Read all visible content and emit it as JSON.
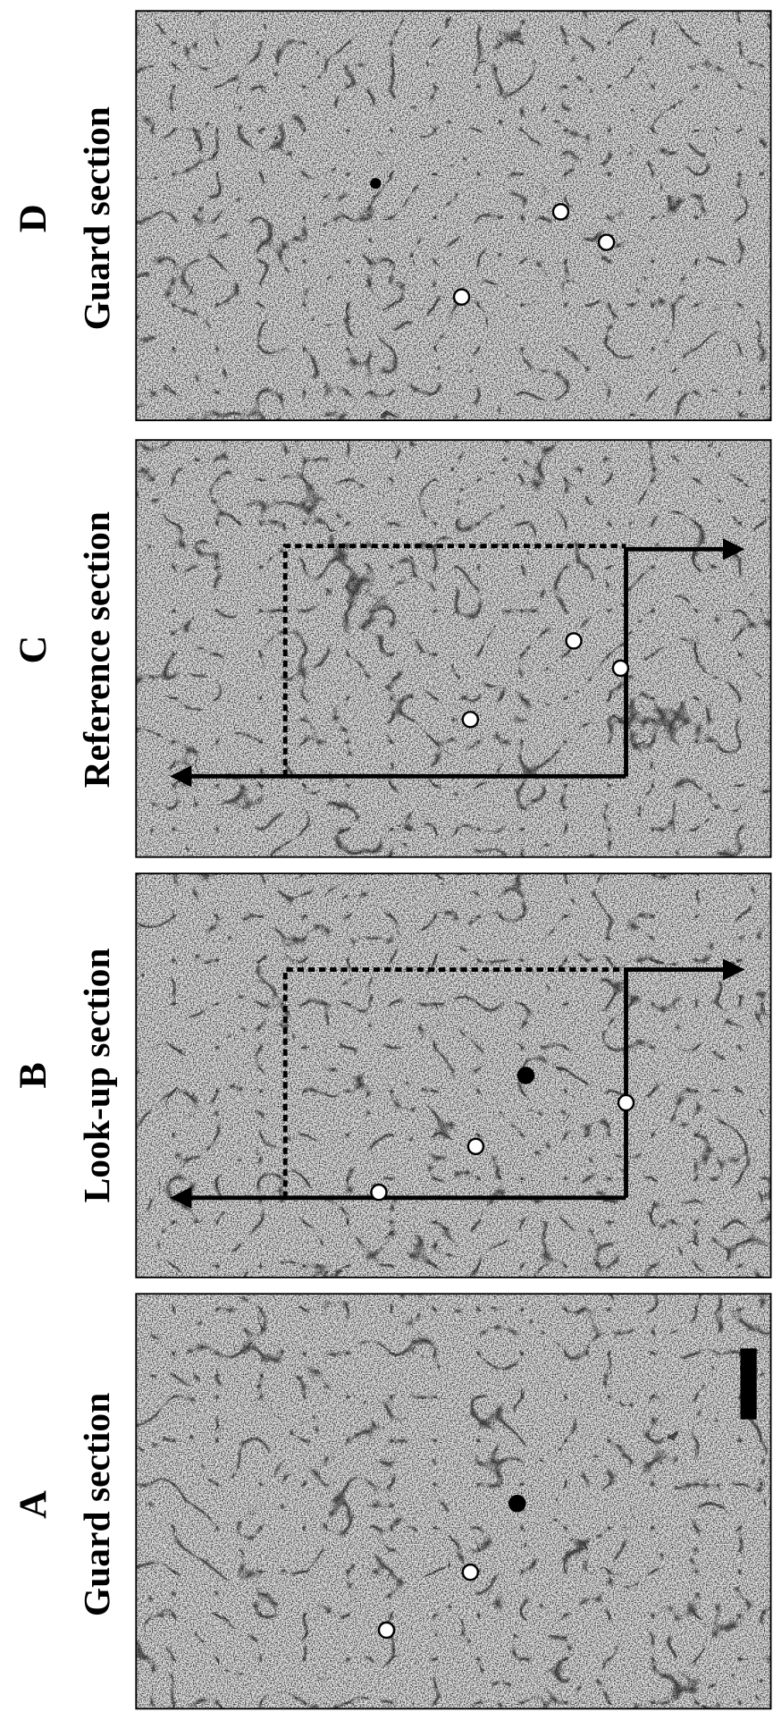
{
  "panels": [
    {
      "letter": "A",
      "caption": "Guard section"
    },
    {
      "letter": "B",
      "caption": "Look-up section"
    },
    {
      "letter": "C",
      "caption": "Reference section"
    },
    {
      "letter": "D",
      "caption": "Guard section"
    }
  ]
}
